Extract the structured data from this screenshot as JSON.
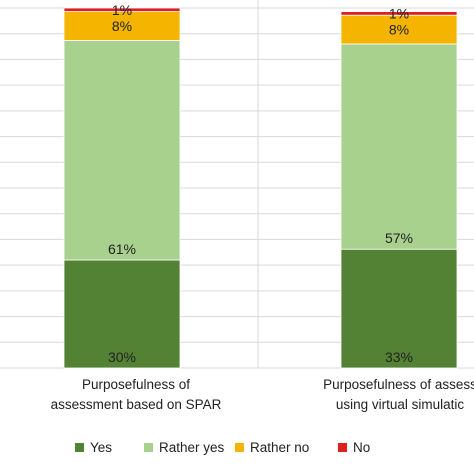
{
  "chart_data": {
    "type": "bar",
    "stacked": true,
    "percent": true,
    "categories": [
      [
        "Purposefulness of",
        "assessment based on SPAR"
      ],
      [
        "Purposefulness of assess",
        "using virtual simulatic"
      ]
    ],
    "series": [
      {
        "name": "Yes",
        "values": [
          30,
          33
        ],
        "labels": [
          "30%",
          "33%"
        ],
        "color": "#548235"
      },
      {
        "name": "Rather yes",
        "values": [
          61,
          57
        ],
        "labels": [
          "61%",
          "57%"
        ],
        "color": "#a9d18e"
      },
      {
        "name": "Rather no",
        "values": [
          8,
          8
        ],
        "labels": [
          "8%",
          "8%"
        ],
        "color": "#f4b400"
      },
      {
        "name": "No",
        "values": [
          1,
          1
        ],
        "labels": [
          "1%",
          "1%"
        ],
        "color": "#e02020"
      }
    ],
    "ylim": [
      0,
      100
    ],
    "grid": true,
    "legend": "bottom"
  }
}
